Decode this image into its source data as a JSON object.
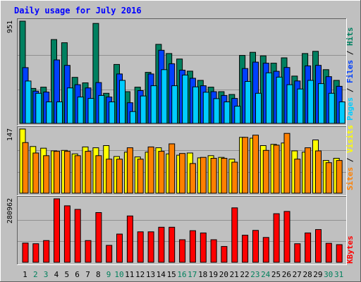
{
  "chart_data": {
    "type": "bar",
    "title": "Daily usage for July 2016",
    "categories": [
      "1",
      "2",
      "3",
      "4",
      "5",
      "6",
      "7",
      "8",
      "9",
      "10",
      "11",
      "12",
      "13",
      "14",
      "15",
      "16",
      "17",
      "18",
      "19",
      "20",
      "21",
      "22",
      "23",
      "24",
      "25",
      "26",
      "27",
      "28",
      "29",
      "30",
      "31"
    ],
    "weekend_days": [
      "2",
      "3",
      "9",
      "10",
      "16",
      "17",
      "23",
      "24",
      "30",
      "31"
    ],
    "panels": [
      {
        "id": "hits-panel",
        "ylabel": "951",
        "ylim": [
          0,
          951
        ],
        "legend": [
          {
            "text": "Pages",
            "color": "#00ccff"
          },
          {
            "text": "Files",
            "color": "#0040ff"
          },
          {
            "text": "Hits",
            "color": "#008060"
          }
        ],
        "series": [
          {
            "name": "Hits",
            "color": "#008060",
            "values": [
              951,
              325,
              337,
              780,
              750,
              428,
              377,
              930,
              280,
              548,
              295,
              337,
              475,
              735,
              650,
              599,
              486,
              400,
              337,
              295,
              269,
              632,
              661,
              628,
              560,
              610,
              440,
              650,
              670,
              500,
              400
            ]
          },
          {
            "name": "Files",
            "color": "#0040ff",
            "values": [
              519,
              300,
              292,
              590,
              540,
              360,
              330,
              380,
              245,
              460,
              192,
              305,
              460,
              680,
              555,
              495,
              420,
              350,
              295,
              260,
              232,
              510,
              570,
              560,
              485,
              520,
              395,
              535,
              540,
              435,
              345
            ]
          },
          {
            "name": "Pages",
            "color": "#00ccff",
            "values": [
              394,
              280,
              200,
              200,
              330,
              245,
              232,
              260,
              200,
              400,
              110,
              255,
              350,
              500,
              350,
              450,
              340,
              290,
              230,
              200,
              160,
              390,
              280,
              470,
              430,
              360,
              320,
              400,
              370,
              280,
              200
            ]
          }
        ]
      },
      {
        "id": "visits-panel",
        "ylabel": "147",
        "ylim": [
          0,
          147
        ],
        "legend": [
          {
            "text": "Sites",
            "color": "#ff8000"
          },
          {
            "text": "Visits",
            "color": "#ffff00"
          }
        ],
        "series": [
          {
            "name": "Visits",
            "color": "#ffff00",
            "values": [
              147,
              107,
              103,
              97,
              98,
              90,
              106,
              104,
              109,
              84,
              94,
              83,
              94,
              104,
              90,
              87,
              92,
              81,
              86,
              82,
              78,
              128,
              126,
              109,
              112,
              115,
              97,
              94,
              122,
              75,
              80
            ]
          },
          {
            "name": "Sites",
            "color": "#ff8000",
            "values": [
              116,
              92,
              86,
              96,
              96,
              86,
              96,
              86,
              78,
              78,
              104,
              78,
              106,
              96,
              113,
              91,
              68,
              82,
              80,
              80,
              71,
              128,
              133,
              98,
              110,
              137,
              78,
              104,
              97,
              70,
              75
            ]
          }
        ]
      },
      {
        "id": "kbytes-panel",
        "ylabel": "280962",
        "ylim": [
          0,
          280962
        ],
        "legend": [
          {
            "text": "KBytes",
            "color": "#ff0000"
          }
        ],
        "series": [
          {
            "name": "KBytes",
            "color": "#ff0000",
            "values": [
              85000,
              82000,
              96000,
              280962,
              250000,
              234000,
              96000,
              220000,
              75000,
              125000,
              205000,
              135000,
              135000,
              155000,
              155000,
              100000,
              140000,
              130000,
              100000,
              70000,
              241000,
              120000,
              141000,
              110000,
              215000,
              225000,
              82000,
              130000,
              145000,
              84000,
              78000
            ]
          }
        ]
      }
    ]
  }
}
